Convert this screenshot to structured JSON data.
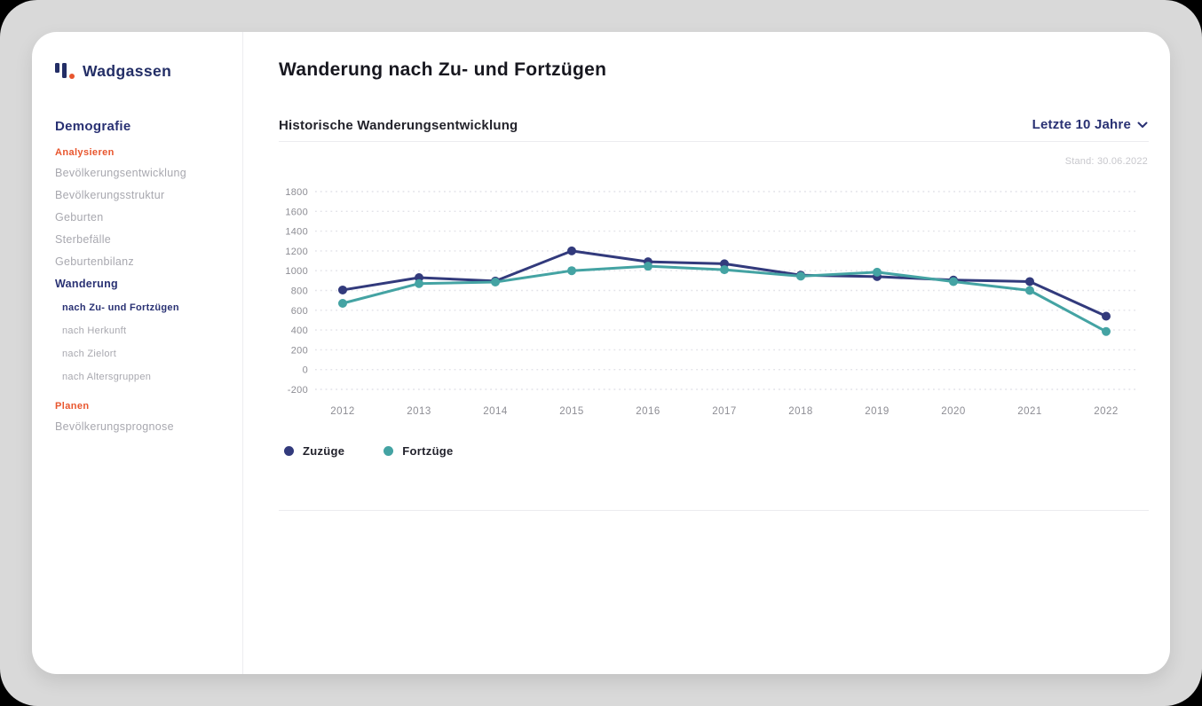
{
  "brand": {
    "name": "Wadgassen"
  },
  "sidebar": {
    "heading": "Demografie",
    "items": [
      {
        "label": "Analysieren",
        "kind": "group"
      },
      {
        "label": "Bevölkerungsentwicklung",
        "kind": "item"
      },
      {
        "label": "Bevölkerungsstruktur",
        "kind": "item"
      },
      {
        "label": "Geburten",
        "kind": "item"
      },
      {
        "label": "Sterbefälle",
        "kind": "item"
      },
      {
        "label": "Geburtenbilanz",
        "kind": "item"
      },
      {
        "label": "Wanderung",
        "kind": "item",
        "state": "active"
      },
      {
        "label": "nach Zu- und Fortzügen",
        "kind": "subitem",
        "state": "active"
      },
      {
        "label": "nach Herkunft",
        "kind": "subitem"
      },
      {
        "label": "nach Zielort",
        "kind": "subitem"
      },
      {
        "label": "nach Altersgruppen",
        "kind": "subitem"
      },
      {
        "label": "Planen",
        "kind": "group"
      },
      {
        "label": "Bevölkerungsprognose",
        "kind": "item"
      }
    ]
  },
  "main": {
    "title": "Wanderung nach Zu- und Fortzügen",
    "section_title": "Historische Wanderungsentwicklung",
    "range_selector": "Letzte 10 Jahre",
    "range_selector_icon": "chevron-down-icon",
    "status": "Stand: 30.06.2022"
  },
  "chart_data": {
    "type": "line",
    "title": "Historische Wanderungsentwicklung",
    "x": [
      "2012",
      "2013",
      "2014",
      "2015",
      "2016",
      "2017",
      "2018",
      "2019",
      "2020",
      "2021",
      "2022"
    ],
    "series": [
      {
        "name": "Zuzüge",
        "color": "#323a7c",
        "values": [
          805,
          930,
          895,
          1200,
          1090,
          1070,
          955,
          940,
          905,
          890,
          540
        ]
      },
      {
        "name": "Fortzüge",
        "color": "#44a3a3",
        "values": [
          670,
          870,
          885,
          1000,
          1045,
          1010,
          945,
          985,
          890,
          800,
          385
        ]
      }
    ],
    "ylim": [
      -200,
      1800
    ],
    "ytick_step": 200,
    "xlabel": "",
    "ylabel": "",
    "grid": "horizontal-dashed",
    "legend_position": "bottom-left"
  },
  "colors": {
    "accent_orange": "#e8562e",
    "navy_text": "#293173",
    "axis_label": "#8d8d94",
    "gridline": "#e2e2e8",
    "series_zuzuege": "#323a7c",
    "series_fortzuege": "#44a3a3"
  }
}
